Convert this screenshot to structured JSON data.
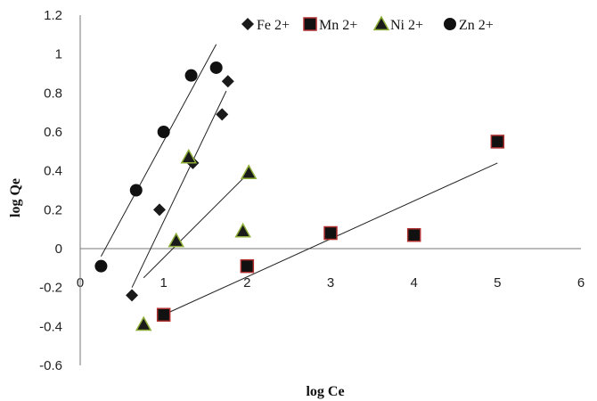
{
  "chart_data": {
    "type": "scatter",
    "title": "",
    "xlabel": "log Ce",
    "ylabel": "log Qe",
    "xlim": [
      0,
      6
    ],
    "ylim": [
      -0.6,
      1.2
    ],
    "x_ticks": [
      0,
      1,
      2,
      3,
      4,
      5,
      6
    ],
    "y_ticks": [
      -0.6,
      -0.4,
      -0.2,
      0,
      0.2,
      0.4,
      0.6,
      0.8,
      1,
      1.2
    ],
    "grid": false,
    "legend_position": "top-right",
    "series": [
      {
        "name": "Fe 2+",
        "marker": "diamond",
        "color": "#1a1a1a",
        "points": [
          [
            0.62,
            -0.24
          ],
          [
            0.95,
            0.2
          ],
          [
            1.35,
            0.44
          ],
          [
            1.7,
            0.69
          ],
          [
            1.77,
            0.86
          ]
        ],
        "trendline": [
          [
            0.62,
            -0.2
          ],
          [
            1.75,
            0.81
          ]
        ]
      },
      {
        "name": "Mn 2+",
        "marker": "square",
        "color": "#111111",
        "edge": "#b03030",
        "points": [
          [
            1.0,
            -0.34
          ],
          [
            2.0,
            -0.09
          ],
          [
            3.0,
            0.08
          ],
          [
            4.0,
            0.07
          ],
          [
            5.0,
            0.55
          ]
        ],
        "trendline": [
          [
            1.0,
            -0.34
          ],
          [
            5.0,
            0.44
          ]
        ]
      },
      {
        "name": "Ni 2+",
        "marker": "triangle",
        "color": "#1a1a1a",
        "fill": "#8fae3a",
        "points": [
          [
            0.76,
            -0.39
          ],
          [
            1.15,
            0.04
          ],
          [
            1.3,
            0.47
          ],
          [
            1.95,
            0.09
          ],
          [
            2.02,
            0.39
          ]
        ],
        "trendline": [
          [
            0.76,
            -0.15
          ],
          [
            2.02,
            0.39
          ]
        ]
      },
      {
        "name": "Zn 2+",
        "marker": "circle",
        "color": "#111111",
        "points": [
          [
            0.25,
            -0.09
          ],
          [
            0.67,
            0.3
          ],
          [
            1.0,
            0.6
          ],
          [
            1.33,
            0.89
          ],
          [
            1.63,
            0.93
          ]
        ],
        "trendline": [
          [
            0.25,
            -0.04
          ],
          [
            1.63,
            1.05
          ]
        ]
      }
    ]
  }
}
